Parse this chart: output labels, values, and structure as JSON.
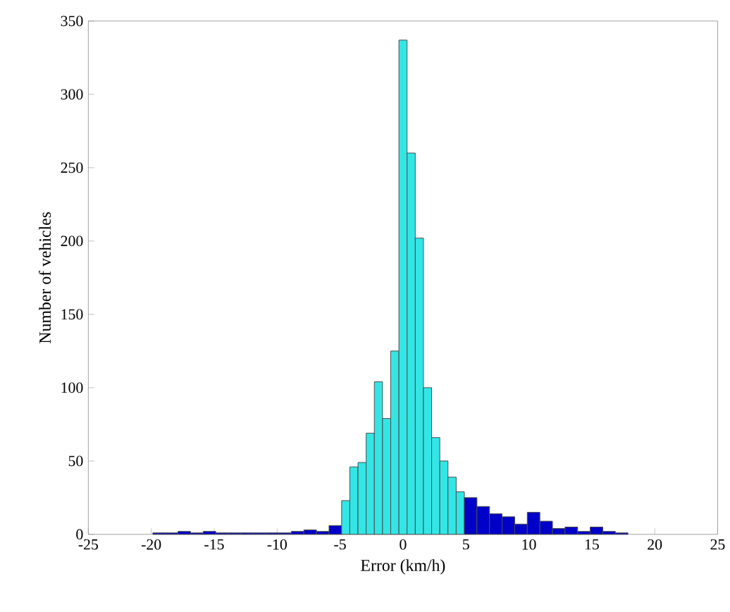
{
  "chart_data": {
    "type": "histogram",
    "xlabel": "Error (km/h)",
    "ylabel": "Number of vehicles",
    "xlim": [
      -25,
      25
    ],
    "xticks": [
      -25,
      -20,
      -15,
      -10,
      -5,
      0,
      5,
      10,
      15,
      20,
      25
    ],
    "ylim": [
      0,
      350
    ],
    "yticks": [
      0,
      50,
      100,
      150,
      200,
      250,
      300,
      350
    ],
    "bins": [
      -19.875,
      -18.875,
      -17.875,
      -16.875,
      -15.875,
      -14.875,
      -13.875,
      -12.875,
      -11.875,
      -10.875,
      -9.875,
      -8.875,
      -7.875,
      -6.875,
      -5.875,
      -4.875,
      -4.225,
      -3.575,
      -2.925,
      -2.275,
      -1.625,
      -0.975,
      -0.325,
      0.325,
      0.975,
      1.625,
      2.275,
      2.925,
      3.575,
      4.225,
      4.875,
      5.875,
      6.875,
      7.875,
      8.875,
      9.875,
      10.875,
      11.875,
      12.875,
      13.875,
      14.875,
      15.875,
      16.875,
      17.875
    ],
    "values": [
      1,
      1,
      2,
      1,
      2,
      1,
      1,
      1,
      1,
      1,
      1,
      2,
      3,
      2,
      6,
      23,
      46,
      49,
      69,
      104,
      79,
      125,
      337,
      260,
      202,
      100,
      66,
      50,
      39,
      29,
      25,
      19,
      14,
      12,
      7,
      15,
      9,
      4,
      5,
      2,
      5,
      2,
      1
    ],
    "colors": [
      "#0000c8",
      "#0000c8",
      "#0000c8",
      "#0000c8",
      "#0000c8",
      "#0000c8",
      "#0000c8",
      "#0000c8",
      "#0000c8",
      "#0000c8",
      "#0000c8",
      "#0000c8",
      "#0000c8",
      "#0000c8",
      "#0000c8",
      "#33e6e6",
      "#33e6e6",
      "#33e6e6",
      "#33e6e6",
      "#33e6e6",
      "#33e6e6",
      "#33e6e6",
      "#33e6e6",
      "#33e6e6",
      "#33e6e6",
      "#33e6e6",
      "#33e6e6",
      "#33e6e6",
      "#33e6e6",
      "#33e6e6",
      "#0000c8",
      "#0000c8",
      "#0000c8",
      "#0000c8",
      "#0000c8",
      "#0000c8",
      "#0000c8",
      "#0000c8",
      "#0000c8",
      "#0000c8",
      "#0000c8",
      "#0000c8",
      "#0000c8"
    ]
  }
}
